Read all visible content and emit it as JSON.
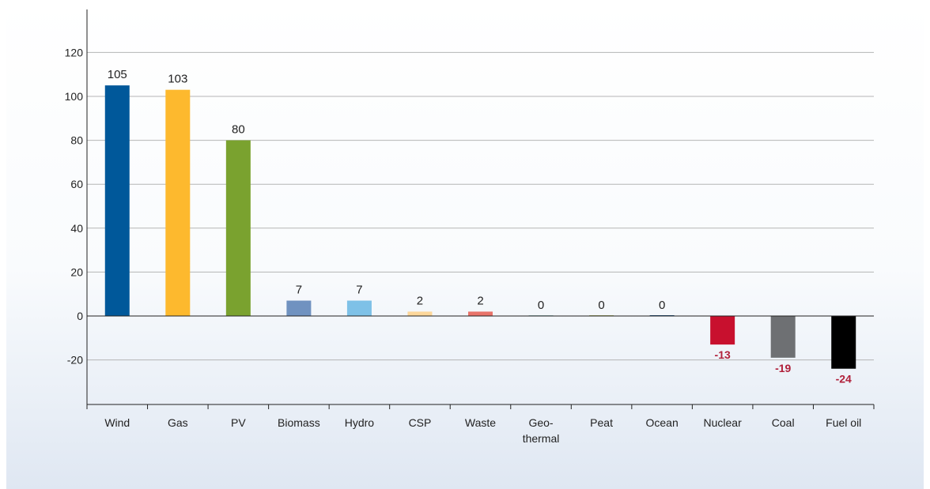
{
  "chart_data": {
    "type": "bar",
    "title": "",
    "xlabel": "",
    "ylabel": "",
    "ylim": [
      -40,
      140
    ],
    "yticks": [
      "-20",
      "0",
      "20",
      "40",
      "60",
      "80",
      "100",
      "120"
    ],
    "ytick_values": [
      -20,
      0,
      20,
      40,
      60,
      80,
      100,
      120
    ],
    "grid": true,
    "legend": "none",
    "categories": [
      [
        "Wind"
      ],
      [
        "Gas"
      ],
      [
        "PV"
      ],
      [
        "Biomass"
      ],
      [
        "Hydro"
      ],
      [
        "CSP"
      ],
      [
        "Waste"
      ],
      [
        "Geo-",
        "thermal"
      ],
      [
        "Peat"
      ],
      [
        "Ocean"
      ],
      [
        "Nuclear"
      ],
      [
        "Coal"
      ],
      [
        "Fuel oil"
      ]
    ],
    "values": [
      105,
      103,
      80,
      7,
      7,
      2,
      2,
      0,
      0,
      0,
      -13,
      -19,
      -24
    ],
    "labels": [
      "105",
      "103",
      "80",
      "7",
      "7",
      "2",
      "2",
      "0",
      "0",
      "0",
      "-13",
      "-19",
      "-24"
    ],
    "colors": [
      "#00589a",
      "#fdb92e",
      "#7aa22f",
      "#7092c0",
      "#7ec1e7",
      "#fdd79a",
      "#e8736a",
      "#a8c8c8",
      "#b5bd76",
      "#1a4f80",
      "#c8102e",
      "#6e7073",
      "#000000"
    ],
    "negative_label_color": "#b0203a",
    "grid_color": "#b5b5b5",
    "axis_color": "#222222"
  }
}
